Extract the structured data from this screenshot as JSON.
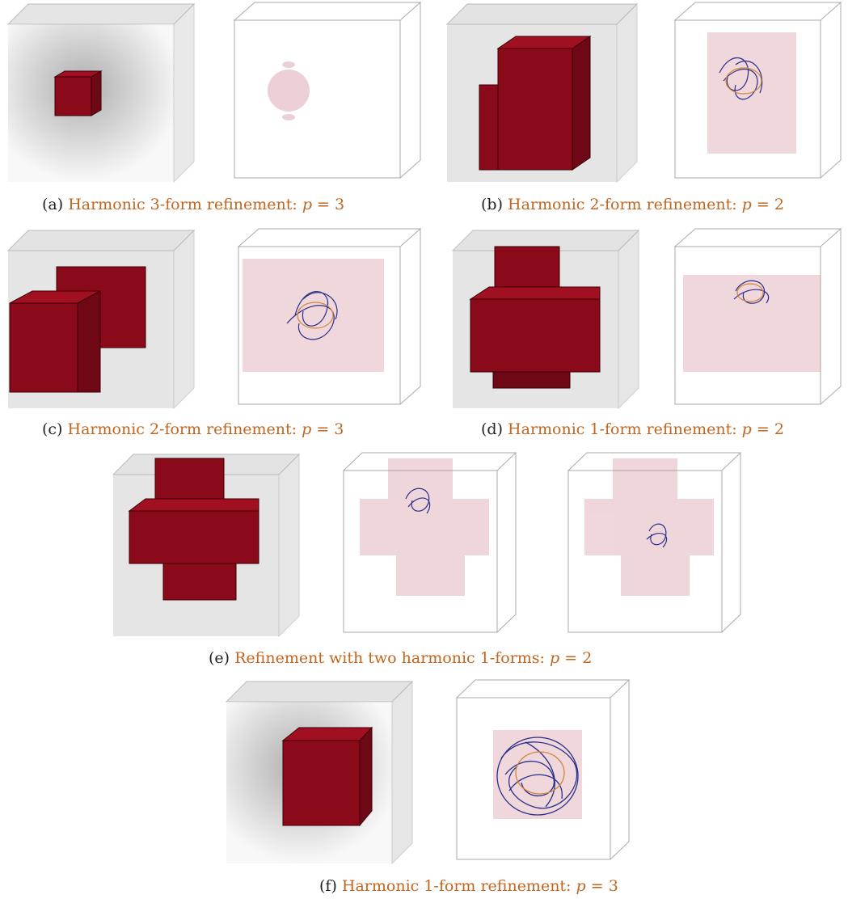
{
  "captions": {
    "a": {
      "label": "(a)",
      "text": "Harmonic 3-form refinement:",
      "var": "p",
      "eq": "= 3"
    },
    "b": {
      "label": "(b)",
      "text": "Harmonic 2-form refinement:",
      "var": "p",
      "eq": "= 2"
    },
    "c": {
      "label": "(c)",
      "text": "Harmonic 2-form refinement:",
      "var": "p",
      "eq": "= 3"
    },
    "d": {
      "label": "(d)",
      "text": "Harmonic 1-form refinement:",
      "var": "p",
      "eq": "= 2"
    },
    "e": {
      "label": "(e)",
      "text": "Refinement with two harmonic 1-forms:",
      "var": "p",
      "eq": "= 2"
    },
    "f": {
      "label": "(f)",
      "text": "Harmonic 1-form refinement:",
      "var": "p",
      "eq": "= 3"
    }
  },
  "colors": {
    "caption_accent": "#c2661f",
    "block_red": "#8b0a1a",
    "field_line": "#2a2f8a",
    "field_cloud": "#c97a8a"
  }
}
